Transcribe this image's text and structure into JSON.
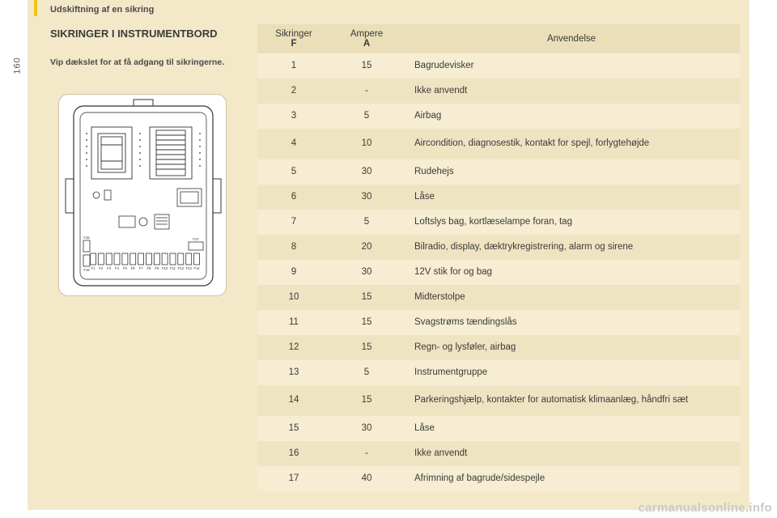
{
  "page_number": "160",
  "breadcrumb": "Udskiftning af en sikring",
  "heading": "SIKRINGER I INSTRUMENTBORD",
  "subheading": "Vip dækslet for at få adgang til sikringerne.",
  "watermark": "carmanualsonline.info",
  "table": {
    "headers": {
      "f_top": "Sikringer",
      "f_sub": "F",
      "a_top": "Ampere",
      "a_sub": "A",
      "use": "Anvendelse"
    },
    "rows": [
      {
        "f": "1",
        "a": "15",
        "use": "Bagrudevisker",
        "tall": false
      },
      {
        "f": "2",
        "a": "-",
        "use": "Ikke anvendt",
        "tall": false
      },
      {
        "f": "3",
        "a": "5",
        "use": "Airbag",
        "tall": false
      },
      {
        "f": "4",
        "a": "10",
        "use": "Aircondition, diagnosestik, kontakt for spejl, forlygtehøjde",
        "tall": true
      },
      {
        "f": "5",
        "a": "30",
        "use": "Rudehejs",
        "tall": false
      },
      {
        "f": "6",
        "a": "30",
        "use": "Låse",
        "tall": false
      },
      {
        "f": "7",
        "a": "5",
        "use": "Loftslys bag, kortlæselampe foran, tag",
        "tall": false
      },
      {
        "f": "8",
        "a": "20",
        "use": "Bilradio, display, dæktrykregistrering, alarm og sirene",
        "tall": false
      },
      {
        "f": "9",
        "a": "30",
        "use": "12V stik for og bag",
        "tall": false
      },
      {
        "f": "10",
        "a": "15",
        "use": "Midterstolpe",
        "tall": false
      },
      {
        "f": "11",
        "a": "15",
        "use": "Svagstrøms tændingslås",
        "tall": false
      },
      {
        "f": "12",
        "a": "15",
        "use": "Regn- og lysføler, airbag",
        "tall": false
      },
      {
        "f": "13",
        "a": "5",
        "use": "Instrumentgruppe",
        "tall": false
      },
      {
        "f": "14",
        "a": "15",
        "use": "Parkeringshjælp, kontakter for automatisk klimaanlæg, håndfri sæt",
        "tall": true
      },
      {
        "f": "15",
        "a": "30",
        "use": "Låse",
        "tall": false
      },
      {
        "f": "16",
        "a": "-",
        "use": "Ikke anvendt",
        "tall": false
      },
      {
        "f": "17",
        "a": "40",
        "use": "Afrimning af bagrude/sidespejle",
        "tall": false
      }
    ]
  },
  "diagram": {
    "outline_color": "#333333",
    "bg_color": "#ffffff",
    "fuse_labels": [
      "F1",
      "F2",
      "F3",
      "F4",
      "F5",
      "F6",
      "F7",
      "F8",
      "F9",
      "F10",
      "F11",
      "F12",
      "F13",
      "F14"
    ],
    "left_labels": [
      "F15",
      "F16"
    ],
    "right_label": "F17"
  }
}
